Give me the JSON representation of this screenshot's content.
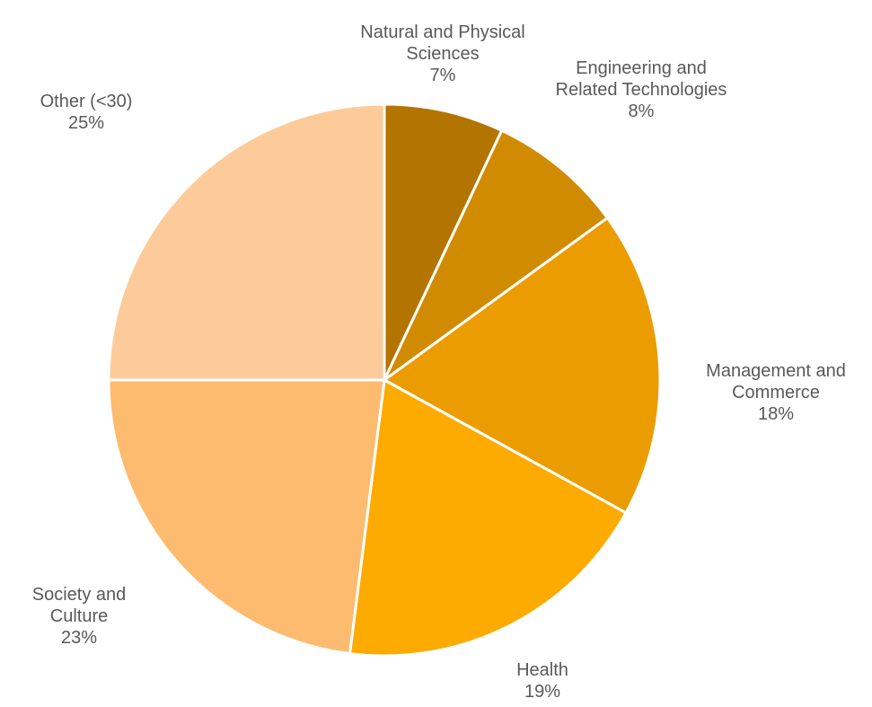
{
  "chart_data": {
    "type": "pie",
    "categories": [
      "Natural and Physical Sciences",
      "Engineering and Related Technologies",
      "Management and Commerce",
      "Health",
      "Society and Culture",
      "Other (<30)"
    ],
    "values": [
      7,
      8,
      18,
      19,
      23,
      25
    ],
    "value_labels": [
      "7%",
      "8%",
      "18%",
      "19%",
      "23%",
      "25%"
    ],
    "colors": [
      "#b37400",
      "#d18b00",
      "#eb9c00",
      "#fdab00",
      "#fdbb70",
      "#fdcb9a"
    ]
  }
}
